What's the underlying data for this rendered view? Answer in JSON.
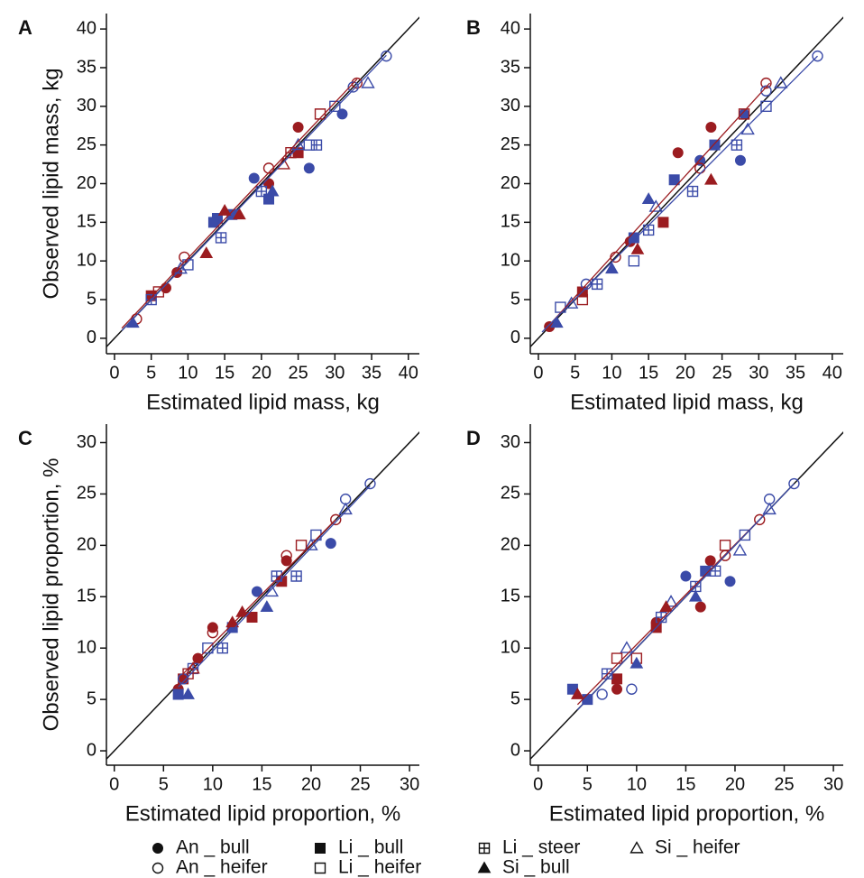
{
  "chart_data": [
    {
      "type": "scatter",
      "label": "A",
      "ylabel": "Observed lipid mass, kg",
      "xlabel": "Estimated lipid mass, kg",
      "xlim": [
        -1.1,
        41.5
      ],
      "ylim": [
        -2,
        42
      ],
      "xticks": [
        0,
        5,
        10,
        15,
        20,
        25,
        30,
        35,
        40
      ],
      "yticks": [
        0,
        5,
        10,
        15,
        20,
        25,
        30,
        35,
        40
      ],
      "identity_line": true,
      "series": [
        {
          "name": "An _ bull",
          "marker": "circle-filled",
          "x": [
            7,
            8.5,
            25,
            26.5,
            21,
            31,
            19
          ],
          "y": [
            6.5,
            8.5,
            27.3,
            22,
            20,
            29,
            20.7
          ],
          "colors": [
            "#9b1c20",
            "#9b1c20",
            "#9b1c20",
            "#3b4ba8",
            "#9b1c20",
            "#3b4ba8",
            "#3b4ba8"
          ]
        },
        {
          "name": "Li _ bull",
          "marker": "square-filled",
          "x": [
            14,
            16,
            25,
            5,
            13.5,
            21
          ],
          "y": [
            15.5,
            16,
            24,
            5.5,
            15,
            18
          ],
          "colors": [
            "#3b4ba8",
            "#3b4ba8",
            "#9b1c20",
            "#9b1c20",
            "#3b4ba8",
            "#3b4ba8"
          ]
        },
        {
          "name": "Li _ steer",
          "marker": "square-plus",
          "x": [
            27.5,
            14.5,
            24,
            5,
            20
          ],
          "y": [
            25,
            13,
            24,
            5,
            19
          ],
          "colors": [
            "#3b4ba8",
            "#3b4ba8",
            "#9b1c20",
            "#3b4ba8",
            "#3b4ba8"
          ]
        },
        {
          "name": "Si _ heifer",
          "marker": "triangle-open",
          "x": [
            34.5,
            25,
            23,
            9
          ],
          "y": [
            33,
            25,
            22.5,
            9
          ],
          "colors": [
            "#3b4ba8",
            "#3b4ba8",
            "#9b1c20",
            "#3b4ba8"
          ]
        },
        {
          "name": "An _ heifer",
          "marker": "circle-open",
          "x": [
            9.5,
            21,
            33,
            32.5,
            37,
            3
          ],
          "y": [
            10.5,
            22,
            33,
            32.5,
            36.5,
            2.5
          ],
          "colors": [
            "#9b1c20",
            "#9b1c20",
            "#9b1c20",
            "#3b4ba8",
            "#3b4ba8",
            "#9b1c20"
          ]
        },
        {
          "name": "Li _ heifer",
          "marker": "square-open",
          "x": [
            28,
            30,
            6,
            26.5,
            10
          ],
          "y": [
            29,
            30,
            6,
            25,
            9.5
          ],
          "colors": [
            "#9b1c20",
            "#3b4ba8",
            "#9b1c20",
            "#3b4ba8",
            "#3b4ba8"
          ]
        },
        {
          "name": "Si _ bull",
          "marker": "triangle-filled",
          "x": [
            15,
            12.5,
            21.5,
            2.5,
            17
          ],
          "y": [
            16.5,
            11,
            19,
            2,
            16
          ],
          "colors": [
            "#9b1c20",
            "#9b1c20",
            "#3b4ba8",
            "#3b4ba8",
            "#9b1c20"
          ]
        }
      ],
      "fit_lines": [
        {
          "color": "#9b1c20",
          "x": [
            1,
            33
          ],
          "y": [
            1.3,
            33.5
          ]
        },
        {
          "color": "#3b4ba8",
          "x": [
            1,
            37
          ],
          "y": [
            1,
            36.6
          ]
        }
      ]
    },
    {
      "type": "scatter",
      "label": "B",
      "xlabel": "Estimated lipid mass, kg",
      "xlim": [
        -1.1,
        41.5
      ],
      "ylim": [
        -2,
        42
      ],
      "xticks": [
        0,
        5,
        10,
        15,
        20,
        25,
        30,
        35,
        40
      ],
      "yticks": [
        0,
        5,
        10,
        15,
        20,
        25,
        30,
        35,
        40
      ],
      "identity_line": true,
      "series": [
        {
          "name": "An _ bull",
          "marker": "circle-filled",
          "x": [
            19,
            22,
            23.5,
            28,
            12.5,
            1.5,
            27.5
          ],
          "y": [
            24,
            23,
            27.3,
            29,
            12.5,
            1.5,
            23
          ],
          "colors": [
            "#9b1c20",
            "#3b4ba8",
            "#9b1c20",
            "#3b4ba8",
            "#9b1c20",
            "#9b1c20",
            "#3b4ba8"
          ]
        },
        {
          "name": "Li _ bull",
          "marker": "square-filled",
          "x": [
            18.5,
            24,
            17,
            13,
            6
          ],
          "y": [
            20.5,
            25,
            15,
            13,
            6
          ],
          "colors": [
            "#3b4ba8",
            "#3b4ba8",
            "#9b1c20",
            "#3b4ba8",
            "#9b1c20"
          ]
        },
        {
          "name": "Li _ steer",
          "marker": "square-plus",
          "x": [
            27,
            21,
            15,
            8
          ],
          "y": [
            25,
            19,
            14,
            7
          ],
          "colors": [
            "#3b4ba8",
            "#3b4ba8",
            "#3b4ba8",
            "#3b4ba8"
          ]
        },
        {
          "name": "Si _ heifer",
          "marker": "triangle-open",
          "x": [
            33,
            28.5,
            16,
            4.5
          ],
          "y": [
            33,
            27,
            17,
            4.5
          ],
          "colors": [
            "#3b4ba8",
            "#3b4ba8",
            "#3b4ba8",
            "#3b4ba8"
          ]
        },
        {
          "name": "An _ heifer",
          "marker": "circle-open",
          "x": [
            31,
            31,
            38,
            10.5,
            6.5,
            22
          ],
          "y": [
            33,
            32,
            36.5,
            10.5,
            7,
            22
          ],
          "colors": [
            "#9b1c20",
            "#3b4ba8",
            "#3b4ba8",
            "#9b1c20",
            "#3b4ba8",
            "#9b1c20"
          ]
        },
        {
          "name": "Li _ heifer",
          "marker": "square-open",
          "x": [
            31,
            28,
            6,
            3,
            13
          ],
          "y": [
            30,
            29,
            5,
            4,
            10
          ],
          "colors": [
            "#3b4ba8",
            "#9b1c20",
            "#9b1c20",
            "#3b4ba8",
            "#3b4ba8"
          ]
        },
        {
          "name": "Si _ bull",
          "marker": "triangle-filled",
          "x": [
            23.5,
            15,
            13.5,
            2.5,
            10
          ],
          "y": [
            20.5,
            18,
            11.5,
            2,
            9
          ],
          "colors": [
            "#9b1c20",
            "#3b4ba8",
            "#9b1c20",
            "#3b4ba8",
            "#3b4ba8"
          ]
        }
      ],
      "fit_lines": [
        {
          "color": "#9b1c20",
          "x": [
            1,
            31.5
          ],
          "y": [
            1.2,
            33
          ]
        },
        {
          "color": "#3b4ba8",
          "x": [
            0.5,
            38
          ],
          "y": [
            0.8,
            36.5
          ]
        }
      ]
    },
    {
      "type": "scatter",
      "label": "C",
      "ylabel": "Observed lipid proportion, %",
      "xlabel": "Estimated lipid proportion, %",
      "xlim": [
        -0.8,
        31
      ],
      "ylim": [
        -1.4,
        31.8
      ],
      "xticks": [
        0,
        5,
        10,
        15,
        20,
        25,
        30
      ],
      "yticks": [
        0,
        5,
        10,
        15,
        20,
        25,
        30
      ],
      "identity_line": true,
      "series": [
        {
          "name": "An _ bull",
          "marker": "circle-filled",
          "x": [
            8.5,
            10,
            17.5,
            22,
            14.5,
            6.5
          ],
          "y": [
            9,
            12,
            18.5,
            20.2,
            15.5,
            6
          ],
          "colors": [
            "#9b1c20",
            "#9b1c20",
            "#9b1c20",
            "#3b4ba8",
            "#3b4ba8",
            "#9b1c20"
          ]
        },
        {
          "name": "Li _ bull",
          "marker": "square-filled",
          "x": [
            6.5,
            14,
            17,
            7,
            12
          ],
          "y": [
            5.5,
            13,
            16.5,
            7,
            12
          ],
          "colors": [
            "#3b4ba8",
            "#9b1c20",
            "#9b1c20",
            "#9b1c20",
            "#3b4ba8"
          ]
        },
        {
          "name": "Li _ steer",
          "marker": "square-plus",
          "x": [
            16.5,
            18.5,
            11,
            8
          ],
          "y": [
            17,
            17,
            10,
            8
          ],
          "colors": [
            "#3b4ba8",
            "#3b4ba8",
            "#3b4ba8",
            "#3b4ba8"
          ]
        },
        {
          "name": "Si _ heifer",
          "marker": "triangle-open",
          "x": [
            23.5,
            20,
            8,
            16
          ],
          "y": [
            23.5,
            20,
            8,
            15.5
          ],
          "colors": [
            "#3b4ba8",
            "#3b4ba8",
            "#9b1c20",
            "#3b4ba8"
          ]
        },
        {
          "name": "An _ heifer",
          "marker": "circle-open",
          "x": [
            17.5,
            23.5,
            26,
            22.5,
            10,
            7
          ],
          "y": [
            19,
            24.5,
            26,
            22.5,
            11.5,
            7
          ],
          "colors": [
            "#9b1c20",
            "#3b4ba8",
            "#3b4ba8",
            "#9b1c20",
            "#9b1c20",
            "#3b4ba8"
          ]
        },
        {
          "name": "Li _ heifer",
          "marker": "square-open",
          "x": [
            19,
            20.5,
            7.5,
            9.5
          ],
          "y": [
            20,
            21,
            7.5,
            10
          ],
          "colors": [
            "#9b1c20",
            "#3b4ba8",
            "#9b1c20",
            "#3b4ba8"
          ]
        },
        {
          "name": "Si _ bull",
          "marker": "triangle-filled",
          "x": [
            12,
            15.5,
            7.5,
            13
          ],
          "y": [
            12.5,
            14,
            5.5,
            13.5
          ],
          "colors": [
            "#9b1c20",
            "#3b4ba8",
            "#3b4ba8",
            "#9b1c20"
          ]
        }
      ],
      "fit_lines": [
        {
          "color": "#9b1c20",
          "x": [
            7,
            22.5
          ],
          "y": [
            7.5,
            22.5
          ]
        },
        {
          "color": "#3b4ba8",
          "x": [
            6.5,
            26
          ],
          "y": [
            6.2,
            25.8
          ]
        }
      ]
    },
    {
      "type": "scatter",
      "label": "D",
      "xlabel": "Estimated lipid proportion, %",
      "xlim": [
        -0.8,
        31
      ],
      "ylim": [
        -1.4,
        31.8
      ],
      "xticks": [
        0,
        5,
        10,
        15,
        20,
        25,
        30
      ],
      "yticks": [
        0,
        5,
        10,
        15,
        20,
        25,
        30
      ],
      "identity_line": true,
      "series": [
        {
          "name": "An _ bull",
          "marker": "circle-filled",
          "x": [
            15,
            16.5,
            19.5,
            17.5,
            8,
            12
          ],
          "y": [
            17,
            14,
            16.5,
            18.5,
            6,
            12.5
          ],
          "colors": [
            "#3b4ba8",
            "#9b1c20",
            "#3b4ba8",
            "#9b1c20",
            "#9b1c20",
            "#9b1c20"
          ]
        },
        {
          "name": "Li _ bull",
          "marker": "square-filled",
          "x": [
            3.5,
            5,
            12,
            17,
            8
          ],
          "y": [
            6,
            5,
            12,
            17.5,
            7
          ],
          "colors": [
            "#3b4ba8",
            "#3b4ba8",
            "#9b1c20",
            "#3b4ba8",
            "#9b1c20"
          ]
        },
        {
          "name": "Li _ steer",
          "marker": "square-plus",
          "x": [
            16,
            18,
            12.5,
            7
          ],
          "y": [
            16,
            17.5,
            13,
            7.5
          ],
          "colors": [
            "#3b4ba8",
            "#3b4ba8",
            "#3b4ba8",
            "#3b4ba8"
          ]
        },
        {
          "name": "Si _ heifer",
          "marker": "triangle-open",
          "x": [
            20.5,
            23.5,
            13.5,
            9
          ],
          "y": [
            19.5,
            23.5,
            14.5,
            10
          ],
          "colors": [
            "#3b4ba8",
            "#3b4ba8",
            "#3b4ba8",
            "#3b4ba8"
          ]
        },
        {
          "name": "An _ heifer",
          "marker": "circle-open",
          "x": [
            23.5,
            26,
            22.5,
            9.5,
            6.5,
            19
          ],
          "y": [
            24.5,
            26,
            22.5,
            6,
            5.5,
            19
          ],
          "colors": [
            "#3b4ba8",
            "#3b4ba8",
            "#9b1c20",
            "#3b4ba8",
            "#3b4ba8",
            "#9b1c20"
          ]
        },
        {
          "name": "Li _ heifer",
          "marker": "square-open",
          "x": [
            19,
            8,
            21,
            10
          ],
          "y": [
            20,
            9,
            21,
            9
          ],
          "colors": [
            "#9b1c20",
            "#9b1c20",
            "#3b4ba8",
            "#9b1c20"
          ]
        },
        {
          "name": "Si _ bull",
          "marker": "triangle-filled",
          "x": [
            4,
            13,
            10,
            16
          ],
          "y": [
            5.5,
            14,
            8.5,
            15
          ],
          "colors": [
            "#9b1c20",
            "#9b1c20",
            "#3b4ba8",
            "#3b4ba8"
          ]
        }
      ],
      "fit_lines": [
        {
          "color": "#9b1c20",
          "x": [
            4,
            22.5
          ],
          "y": [
            4.5,
            22.5
          ]
        },
        {
          "color": "#3b4ba8",
          "x": [
            4,
            26
          ],
          "y": [
            4,
            26
          ]
        }
      ]
    }
  ],
  "legend_color": "#111111"
}
